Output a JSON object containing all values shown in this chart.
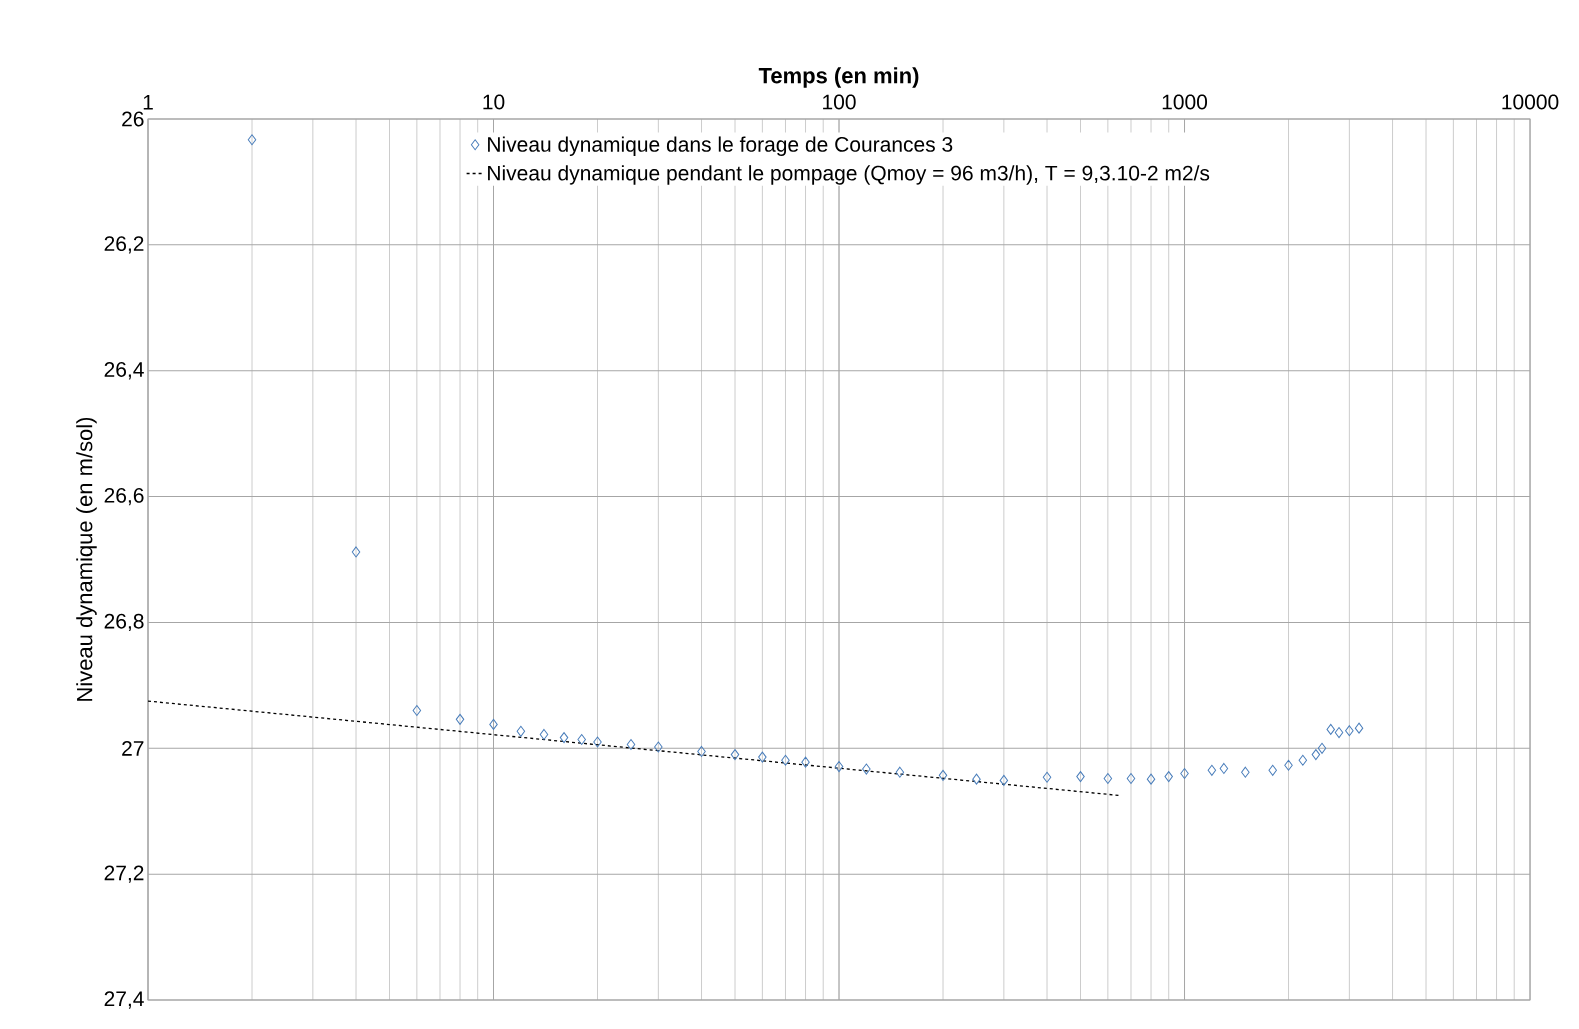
{
  "chart_data": {
    "type": "scatter",
    "xlabel": "Temps (en min)",
    "ylabel": "Niveau dynamique (en m/sol)",
    "log": "x",
    "grid": true,
    "legend": "top",
    "xlim": [
      1,
      10000
    ],
    "xticks": [
      1,
      10,
      100,
      1000,
      10000
    ],
    "ylim": [
      27.4,
      26
    ],
    "yticks": [
      26,
      {
        "value": 26.2,
        "label": "26,2"
      },
      {
        "value": 26.4,
        "label": "26,4"
      },
      {
        "value": 26.6,
        "label": "26,6"
      },
      {
        "value": 26.8,
        "label": "26,8"
      },
      27,
      {
        "value": 27.2,
        "label": "27,2"
      },
      {
        "value": 27.4,
        "label": "27,4"
      }
    ],
    "series": [
      {
        "name": "Niveau dynamique dans le forage de Courances 3",
        "color": "#4a7ebb",
        "marker": "diamond",
        "x": [
          2,
          4,
          6,
          8,
          10,
          12,
          14,
          16,
          18,
          20,
          25,
          30,
          40,
          50,
          60,
          70,
          80,
          100,
          120,
          150,
          200,
          250,
          300,
          400,
          500,
          600,
          700,
          800,
          900,
          1000,
          1200,
          1300,
          1500,
          1800,
          2000,
          2200,
          2400,
          2500,
          2650,
          2800,
          3000,
          3200
        ],
        "values": [
          26.033,
          26.688,
          26.94,
          26.954,
          26.962,
          26.973,
          26.978,
          26.983,
          26.986,
          26.99,
          26.994,
          26.998,
          27.005,
          27.01,
          27.014,
          27.019,
          27.022,
          27.029,
          27.033,
          27.038,
          27.043,
          27.049,
          27.051,
          27.046,
          27.045,
          27.048,
          27.048,
          27.049,
          27.045,
          27.04,
          27.035,
          27.032,
          27.038,
          27.035,
          27.027,
          27.019,
          27.01,
          27.0,
          26.97,
          26.975,
          26.972,
          26.968
        ]
      },
      {
        "name": "Niveau dynamique pendant le pompage (Qmoy = 96 m3/h), T = 9,3.10-2 m2/s",
        "type": "line",
        "color": "#000000",
        "line_style": "dashed",
        "marker": "none",
        "x": [
          1,
          650
        ],
        "values": [
          26.925,
          27.075
        ]
      }
    ]
  }
}
